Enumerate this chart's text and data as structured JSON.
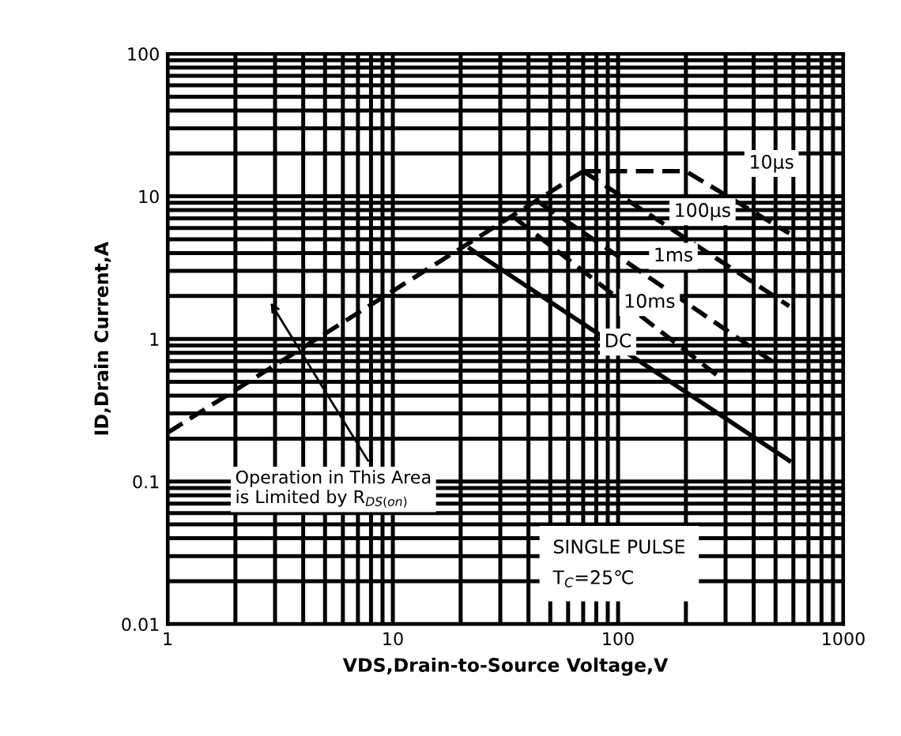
{
  "chart_data": {
    "type": "line",
    "xlabel": "VDS,Drain-to-Source Voltage,V",
    "ylabel": "ID,Drain Current,A",
    "log": "xy",
    "grid": true,
    "legend": false,
    "marker": "none",
    "xlim": [
      1,
      1000
    ],
    "ylim": [
      0.01,
      100
    ],
    "xticks": [
      1,
      10,
      100,
      1000
    ],
    "yticks": [
      0.01,
      0.1,
      1,
      10,
      100
    ],
    "series": [
      {
        "color": "#000000",
        "line_style": "dashed",
        "x": [
          1,
          70
        ],
        "values": [
          0.22,
          15
        ]
      },
      {
        "color": "#000000",
        "line_style": "dashed",
        "x": [
          70,
          200,
          575
        ],
        "values": [
          15,
          15,
          5.5
        ]
      },
      {
        "color": "#000000",
        "line_style": "dashed",
        "x": [
          70,
          575
        ],
        "values": [
          15,
          1.7
        ]
      },
      {
        "color": "#000000",
        "line_style": "dashed",
        "x": [
          45,
          480
        ],
        "values": [
          9,
          0.7
        ]
      },
      {
        "color": "#000000",
        "line_style": "dashed",
        "x": [
          35,
          300
        ],
        "values": [
          7,
          0.5
        ]
      },
      {
        "color": "#000000",
        "line_style": "solid",
        "x": [
          22,
          575
        ],
        "values": [
          4.3,
          0.14
        ]
      }
    ],
    "annotations": [
      {
        "text": "10μs",
        "x": 480,
        "y": 17
      },
      {
        "text": "100μs",
        "x": 237,
        "y": 7.8
      },
      {
        "text": "1ms",
        "x": 176,
        "y": 3.8
      },
      {
        "text": "10ms",
        "x": 138,
        "y": 1.8
      },
      {
        "text": "DC",
        "x": 100,
        "y": 0.95
      },
      "Operation in This Area\nis Limited by R$_{DS(on)}$",
      "SINGLE PULSE\nT$_{C}$=25℃"
    ]
  }
}
